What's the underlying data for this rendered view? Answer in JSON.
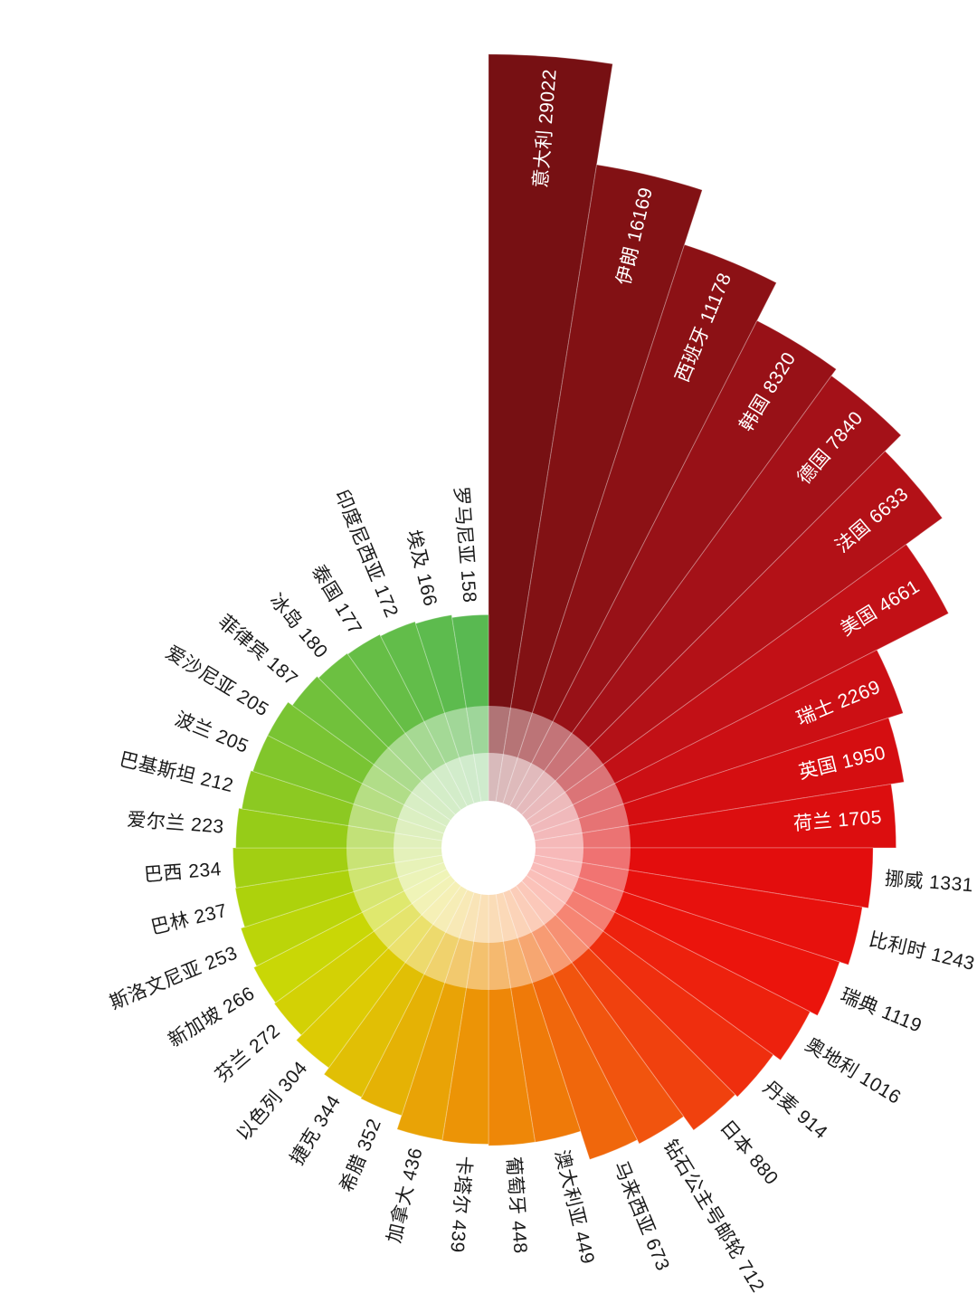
{
  "chart_data": {
    "type": "bar",
    "layout": "polar-rose-spiral",
    "title": "",
    "legend": null,
    "sort": "descending-clockwise-from-top",
    "categories": [
      "意大利",
      "伊朗",
      "西班牙",
      "韩国",
      "德国",
      "法国",
      "美国",
      "瑞士",
      "英国",
      "荷兰",
      "挪威",
      "比利时",
      "瑞典",
      "奥地利",
      "丹麦",
      "日本",
      "钻石公主号邮轮",
      "马来西亚",
      "澳大利亚",
      "葡萄牙",
      "卡塔尔",
      "加拿大",
      "希腊",
      "捷克",
      "以色列",
      "芬兰",
      "新加坡",
      "斯洛文尼亚",
      "巴林",
      "巴西",
      "爱尔兰",
      "巴基斯坦",
      "波兰",
      "爱沙尼亚",
      "菲律宾",
      "冰岛",
      "泰国",
      "印度尼西亚",
      "埃及",
      "罗马尼亚"
    ],
    "values": [
      29022,
      16169,
      11178,
      8320,
      7840,
      6633,
      4661,
      2269,
      1950,
      1705,
      1331,
      1243,
      1119,
      1016,
      914,
      880,
      712,
      673,
      449,
      448,
      439,
      436,
      352,
      344,
      304,
      272,
      266,
      253,
      237,
      234,
      223,
      212,
      205,
      205,
      187,
      180,
      177,
      172,
      166,
      158
    ],
    "value_range": [
      158,
      29022
    ],
    "inner_label_last_index": 9,
    "inner_label_color": "#ffffff",
    "outer_label_color": "#1a1a1a",
    "background": "#ffffff",
    "center_hole_color": "#ffffff",
    "palette_stops": [
      {
        "i": 0,
        "c": "#771013"
      },
      {
        "i": 2,
        "c": "#8c1115"
      },
      {
        "i": 4,
        "c": "#a41118"
      },
      {
        "i": 6,
        "c": "#c21016"
      },
      {
        "i": 8,
        "c": "#d50e11"
      },
      {
        "i": 10,
        "c": "#e30d0d"
      },
      {
        "i": 12,
        "c": "#eb140c"
      },
      {
        "i": 14,
        "c": "#ef2e0e"
      },
      {
        "i": 16,
        "c": "#f1540e"
      },
      {
        "i": 18,
        "c": "#ef7a09"
      },
      {
        "i": 20,
        "c": "#ec9406"
      },
      {
        "i": 22,
        "c": "#e5b205"
      },
      {
        "i": 24,
        "c": "#ddcb04"
      },
      {
        "i": 26,
        "c": "#c9d706"
      },
      {
        "i": 28,
        "c": "#add20c"
      },
      {
        "i": 30,
        "c": "#96cc18"
      },
      {
        "i": 32,
        "c": "#81c62b"
      },
      {
        "i": 34,
        "c": "#71c13b"
      },
      {
        "i": 36,
        "c": "#66be46"
      },
      {
        "i": 38,
        "c": "#5dbb4e"
      },
      {
        "i": 39,
        "c": "#59b951"
      }
    ],
    "center_fade_rings": [
      {
        "r": 157,
        "opacity": 0.42
      },
      {
        "r": 105,
        "opacity": 0.5
      },
      {
        "r": 52,
        "opacity": 1.0
      }
    ]
  }
}
